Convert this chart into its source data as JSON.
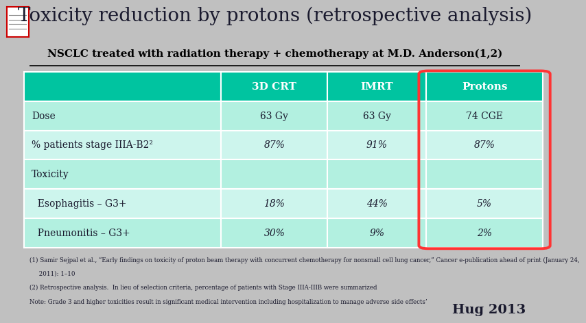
{
  "title": "Toxicity reduction by protons (retrospective analysis)",
  "subtitle": "NSCLC treated with radiation therapy + chemotherapy at M.D. Anderson",
  "subtitle_superscript": "(1,2)",
  "background_color": "#c0c0c0",
  "header_bg": "#00c4a0",
  "header_text_color": "#ffffff",
  "row_bg_light": "#b2f0e0",
  "row_bg_medium": "#cdf5ed",
  "protons_highlight_color": "#ff3333",
  "columns": [
    "",
    "3D CRT",
    "IMRT",
    "Protons"
  ],
  "rows": [
    {
      "label": "Dose",
      "vals": [
        "63 Gy",
        "63 Gy",
        "74 CGE"
      ],
      "italic_vals": false
    },
    {
      "label": "% patients stage IIIA-B2²",
      "vals": [
        "87%",
        "91%",
        "87%"
      ],
      "italic_vals": true
    },
    {
      "label": "Toxicity",
      "vals": [
        "",
        "",
        ""
      ],
      "italic_vals": false
    },
    {
      "label": "  Esophagitis – G3+",
      "vals": [
        "18%",
        "44%",
        "5%"
      ],
      "italic_vals": true
    },
    {
      "label": "  Pneumonitis – G3+",
      "vals": [
        "30%",
        "9%",
        "2%"
      ],
      "italic_vals": true
    }
  ],
  "footnote1": "(1) Samir Sejpal et al., “Early findings on toxicity of proton beam therapy with concurrent chemotherapy for nonsmall cell lung cancer,” Cancer e-publication ahead of print (January 24,",
  "footnote1b": "     2011): 1–10",
  "footnote2": "(2) Retrospective analysis.  In lieu of selection criteria, percentage of patients with Stage IIIA-IIIB were summarized",
  "footnote3": "Note: Grade 3 and higher toxicities result in significant medical intervention including hospitalization to manage adverse side effects’",
  "credit": "Hug 2013"
}
